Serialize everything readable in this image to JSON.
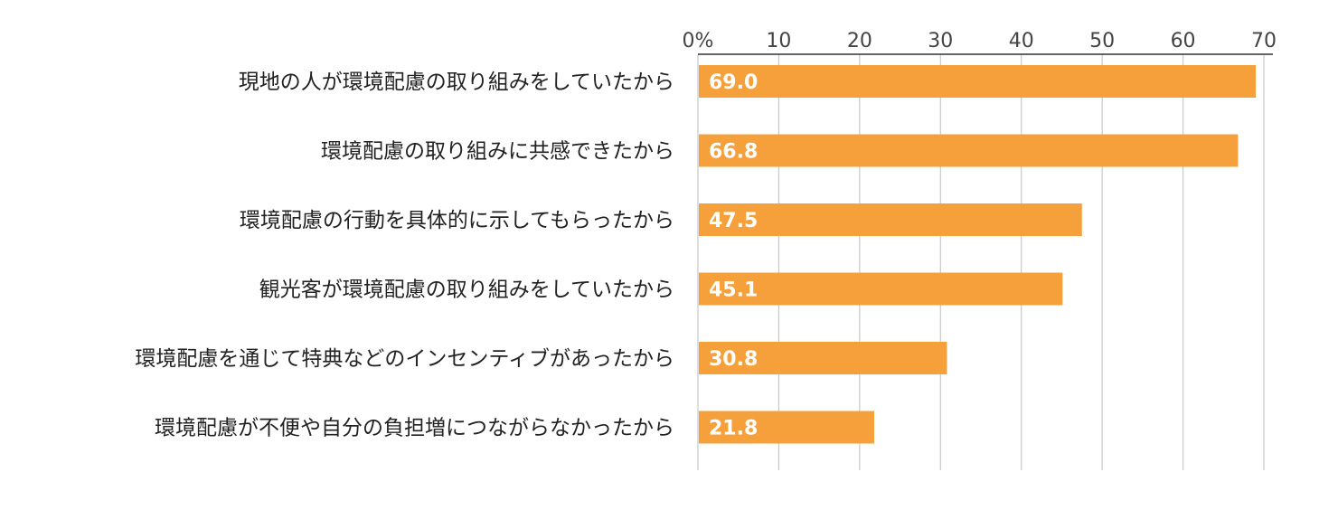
{
  "chart_data": {
    "type": "bar",
    "orientation": "horizontal",
    "categories": [
      "現地の人が環境配慮の取り組みをしていたから",
      "環境配慮の取り組みに共感できたから",
      "環境配慮の行動を具体的に示してもらったから",
      "観光客が環境配慮の取り組みをしていたから",
      "環境配慮を通じて特典などのインセンティブがあったから",
      "環境配慮が不便や自分の負担増につながらなかったから"
    ],
    "values": [
      69.0,
      66.8,
      47.5,
      45.1,
      30.8,
      21.8
    ],
    "value_labels": [
      "69.0",
      "66.8",
      "47.5",
      "45.1",
      "30.8",
      "21.8"
    ],
    "tick_values": [
      0,
      10,
      20,
      30,
      40,
      50,
      60,
      70
    ],
    "tick_labels": [
      "0%",
      "10",
      "20",
      "30",
      "40",
      "50",
      "60",
      "70"
    ],
    "xlim": [
      0,
      70
    ],
    "grid": true,
    "title": "",
    "xlabel": "",
    "ylabel": "",
    "bar_color": "#f6a03c",
    "grid_color": "#c8c8c8",
    "axis_color": "#333333",
    "value_label_color": "#ffffff"
  }
}
